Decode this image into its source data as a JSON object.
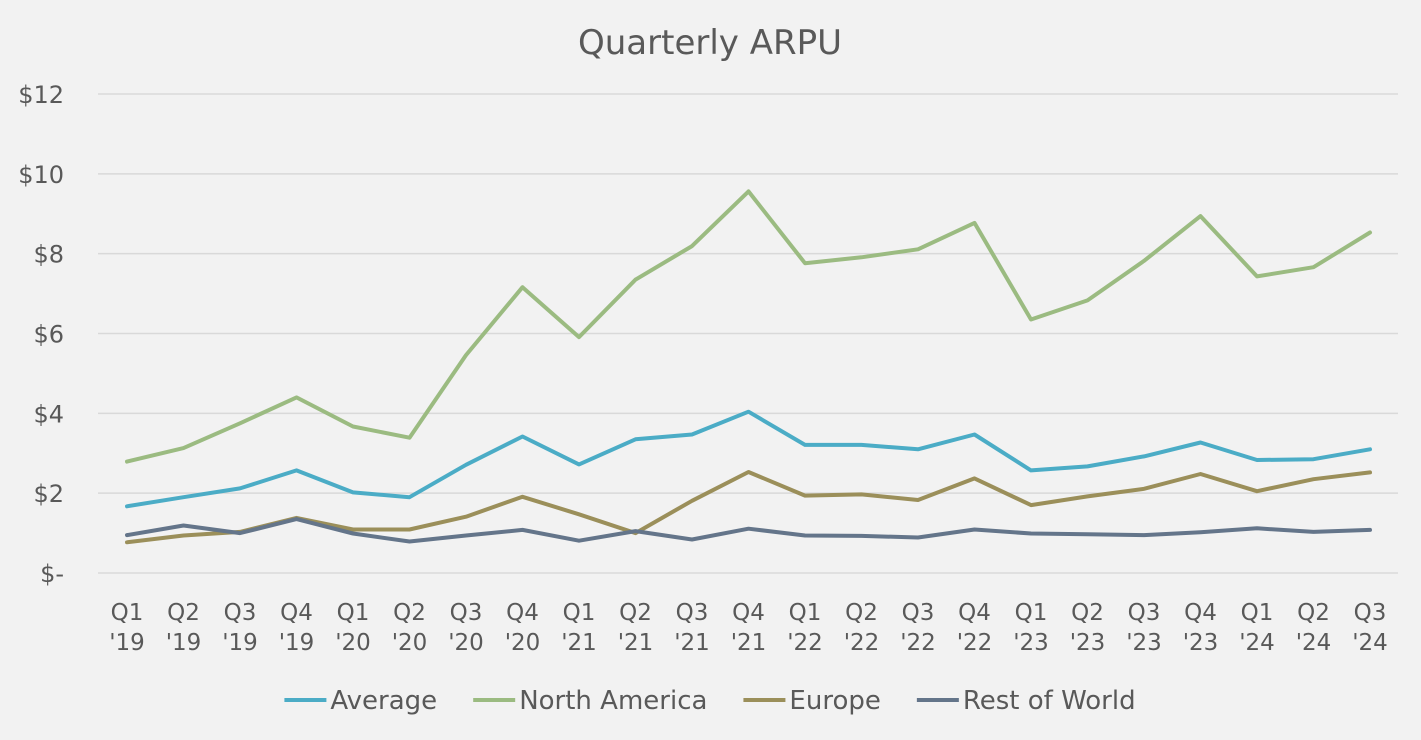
{
  "chart_data": {
    "type": "line",
    "title": "Quarterly ARPU",
    "xlabel": "",
    "ylabel": "",
    "ylim": [
      0,
      12
    ],
    "yticks": [
      {
        "value": 0,
        "label": "$-"
      },
      {
        "value": 2,
        "label": "$2"
      },
      {
        "value": 4,
        "label": "$4"
      },
      {
        "value": 6,
        "label": "$6"
      },
      {
        "value": 8,
        "label": "$8"
      },
      {
        "value": 10,
        "label": "$10"
      },
      {
        "value": 12,
        "label": "$12"
      }
    ],
    "categories": [
      [
        "Q1",
        "'19"
      ],
      [
        "Q2",
        "'19"
      ],
      [
        "Q3",
        "'19"
      ],
      [
        "Q4",
        "'19"
      ],
      [
        "Q1",
        "'20"
      ],
      [
        "Q2",
        "'20"
      ],
      [
        "Q3",
        "'20"
      ],
      [
        "Q4",
        "'20"
      ],
      [
        "Q1",
        "'21"
      ],
      [
        "Q2",
        "'21"
      ],
      [
        "Q3",
        "'21"
      ],
      [
        "Q4",
        "'21"
      ],
      [
        "Q1",
        "'22"
      ],
      [
        "Q2",
        "'22"
      ],
      [
        "Q3",
        "'22"
      ],
      [
        "Q4",
        "'22"
      ],
      [
        "Q1",
        "'23"
      ],
      [
        "Q2",
        "'23"
      ],
      [
        "Q3",
        "'23"
      ],
      [
        "Q4",
        "'23"
      ],
      [
        "Q1",
        "'24"
      ],
      [
        "Q2",
        "'24"
      ],
      [
        "Q3",
        "'24"
      ]
    ],
    "grid": true,
    "legend_position": "bottom",
    "series": [
      {
        "name": "Average",
        "color": "#4bacc6",
        "values": [
          1.67,
          1.9,
          2.12,
          2.57,
          2.02,
          1.9,
          2.71,
          3.42,
          2.72,
          3.35,
          3.47,
          4.04,
          3.21,
          3.21,
          3.1,
          3.47,
          2.57,
          2.67,
          2.92,
          3.27,
          2.83,
          2.85,
          3.1
        ]
      },
      {
        "name": "North America",
        "color": "#9bbb81",
        "values": [
          2.79,
          3.13,
          3.75,
          4.4,
          3.67,
          3.39,
          5.46,
          7.16,
          5.91,
          7.35,
          8.19,
          9.56,
          7.76,
          7.91,
          8.11,
          8.77,
          6.35,
          6.83,
          7.82,
          8.94,
          7.43,
          7.66,
          8.53
        ]
      },
      {
        "name": "Europe",
        "color": "#9b8f5a",
        "values": [
          0.77,
          0.94,
          1.03,
          1.38,
          1.09,
          1.09,
          1.41,
          1.91,
          1.47,
          1.0,
          1.81,
          2.53,
          1.94,
          1.97,
          1.83,
          2.37,
          1.7,
          1.92,
          2.11,
          2.48,
          2.05,
          2.35,
          2.52
        ]
      },
      {
        "name": "Rest of World",
        "color": "#64758a",
        "values": [
          0.95,
          1.19,
          1.0,
          1.35,
          0.99,
          0.79,
          0.94,
          1.08,
          0.81,
          1.05,
          0.84,
          1.11,
          0.94,
          0.93,
          0.89,
          1.09,
          0.99,
          0.97,
          0.95,
          1.02,
          1.12,
          1.03,
          1.08
        ]
      }
    ]
  }
}
